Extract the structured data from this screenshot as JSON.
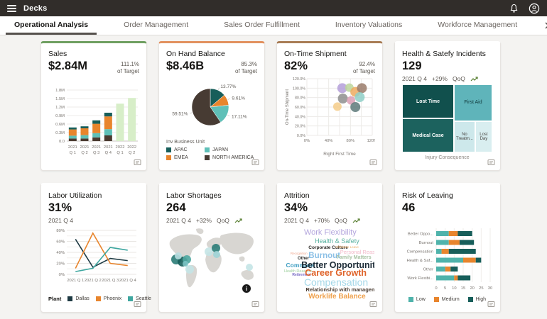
{
  "header": {
    "app_title": "Decks"
  },
  "tabs": [
    {
      "label": "Operational Analysis",
      "active": true
    },
    {
      "label": "Order Management",
      "active": false
    },
    {
      "label": "Sales Order Fulfillment",
      "active": false
    },
    {
      "label": "Inventory Valuations",
      "active": false
    },
    {
      "label": "Workforce Management",
      "active": false
    }
  ],
  "cards": [
    {
      "title": "Sales",
      "value": "$2.84M",
      "target_pct": "111.1%",
      "target_label": "of Target",
      "accent": "#6f9f61",
      "chart_data": {
        "type": "stacked_bar",
        "categories": [
          "2021 Q 1",
          "2021 Q 2",
          "2021 Q 3",
          "2021 Q 4",
          "2022 Q 1",
          "2022 Q 2"
        ],
        "ymax": 1.8,
        "ytick_step": 0.3,
        "ytick_labels": [
          "0.0",
          "0.3M",
          "0.6M",
          "0.9M",
          "1.2M",
          "1.5M",
          "1.8M"
        ],
        "stack_colors": [
          "#4a3a30",
          "#5fc0b8",
          "#e8852d",
          "#175e5a"
        ],
        "stacks": [
          [
            0.09,
            0.1,
            0.22,
            0.07
          ],
          [
            0.09,
            0.12,
            0.24,
            0.07
          ],
          [
            0.13,
            0.15,
            0.33,
            0.12
          ],
          [
            0.2,
            0.22,
            0.45,
            0.13
          ],
          null,
          null
        ],
        "forecast_values": [
          null,
          null,
          null,
          null,
          1.32,
          1.52
        ],
        "forecast_color": "#d7eec8"
      }
    },
    {
      "title": "On Hand Balance",
      "value": "$8.46B",
      "target_pct": "85.3%",
      "target_label": "of Target",
      "accent": "#e2915f",
      "chart_data": {
        "type": "pie",
        "slices": [
          {
            "label": "13.77%",
            "value": 13.77,
            "color": "#175e5a"
          },
          {
            "label": "9.61%",
            "value": 9.61,
            "color": "#e8852d"
          },
          {
            "label": "17.11%",
            "value": 17.11,
            "color": "#5fc0b8"
          },
          {
            "label": "59.51%",
            "value": 59.51,
            "color": "#473b33"
          }
        ],
        "legend_title": "Inv Business Unit",
        "legend": [
          {
            "label": "APAC",
            "color": "#175e5a"
          },
          {
            "label": "JAPAN",
            "color": "#5fc0b8"
          },
          {
            "label": "EMEA",
            "color": "#e8852d"
          },
          {
            "label": "NORTH AMERICA",
            "color": "#473b33"
          }
        ]
      }
    },
    {
      "title": "On-Time Shipment",
      "value": "82%",
      "target_pct": "92.4%",
      "target_label": "of Target",
      "accent": "#a87c55",
      "chart_data": {
        "type": "bubble",
        "xlabel": "Right First Time",
        "ylabel": "On-Time Shipment",
        "xmax": 120,
        "ymax": 120,
        "xtick_labels": [
          "0%",
          "40%",
          "80%",
          "120%"
        ],
        "ytick_labels": [
          "0.0%",
          "20.0%",
          "40.0%",
          "60.0%",
          "80.0%",
          "100.0%",
          "120.0%"
        ],
        "points": [
          {
            "x": 65,
            "y": 100,
            "r": 7,
            "color": "#b49fd9"
          },
          {
            "x": 78,
            "y": 101,
            "r": 6,
            "color": "#bcd69b"
          },
          {
            "x": 89,
            "y": 92,
            "r": 7,
            "color": "#edaa5f"
          },
          {
            "x": 101,
            "y": 100,
            "r": 7,
            "color": "#9a7b6a"
          },
          {
            "x": 66,
            "y": 78,
            "r": 7,
            "color": "#8e8e8e"
          },
          {
            "x": 81,
            "y": 74,
            "r": 6,
            "color": "#dc9fb5"
          },
          {
            "x": 97,
            "y": 81,
            "r": 7,
            "color": "#8fd0c8"
          },
          {
            "x": 56,
            "y": 61,
            "r": 6,
            "color": "#f5cd8a"
          },
          {
            "x": 89,
            "y": 60,
            "r": 7,
            "color": "#5e7a7a"
          }
        ]
      }
    },
    {
      "title": "Health & Satefy Incidents",
      "value": "129",
      "period": "2021 Q 4",
      "delta": "+29%",
      "qoq_label": "QoQ",
      "chart_data": {
        "type": "treemap",
        "caption": "Injury Consequence",
        "tiles": [
          {
            "label": "Lost Time",
            "x": 0,
            "y": 0,
            "w": 57.5,
            "h": 50,
            "color": "#11504d",
            "text": "#ffffff",
            "bold": true,
            "fs": 7
          },
          {
            "label": "First Aid",
            "x": 57.5,
            "y": 0,
            "w": 42.5,
            "h": 54,
            "color": "#5fb4ba",
            "text": "#10393b",
            "bold": false,
            "fs": 7
          },
          {
            "label": "Medical Case",
            "x": 0,
            "y": 50,
            "w": 57.5,
            "h": 50,
            "color": "#1c625e",
            "text": "#ffffff",
            "bold": true,
            "fs": 7
          },
          {
            "label": "No Treatm...",
            "x": 57.5,
            "y": 54,
            "w": 23.5,
            "h": 46,
            "color": "#cde8eb",
            "text": "#45413d",
            "bold": false,
            "fs": 6
          },
          {
            "label": "Lost Day",
            "x": 81,
            "y": 54,
            "w": 19,
            "h": 46,
            "color": "#d9eef0",
            "text": "#45413d",
            "bold": false,
            "fs": 6
          }
        ]
      }
    },
    {
      "title": "Labor Utilization",
      "value": "31%",
      "period": "2021 Q 4",
      "chart_data": {
        "type": "line",
        "categories": [
          "2021 Q 1",
          "2021 Q 2",
          "2021 Q 3",
          "2021 Q 4"
        ],
        "ymax": 80,
        "ytick_step": 20,
        "ytick_labels": [
          "0%",
          "20%",
          "40%",
          "60%",
          "80%"
        ],
        "legend_title": "Plant",
        "series": [
          {
            "name": "Dallas",
            "color": "#1e3a43",
            "values": [
              64,
              13,
              29,
              25
            ]
          },
          {
            "name": "Phoenix",
            "color": "#e8852d",
            "values": [
              11,
              75,
              20,
              16
            ]
          },
          {
            "name": "Seattle",
            "color": "#3fa7a0",
            "values": [
              5,
              11,
              49,
              44
            ]
          }
        ]
      }
    },
    {
      "title": "Labor Shortages",
      "value": "264",
      "period": "2021 Q 4",
      "delta": "+32%",
      "qoq_label": "QoQ",
      "chart_data": {
        "type": "map",
        "points": [
          {
            "x": 14,
            "y": 47,
            "r": 7,
            "color": "#2b7c77"
          },
          {
            "x": 23,
            "y": 50,
            "r": 7,
            "color": "#175f5b"
          },
          {
            "x": 29,
            "y": 47,
            "r": 6,
            "color": "#4fa8a1"
          },
          {
            "x": 17,
            "y": 42,
            "r": 5,
            "color": "#b8dee0"
          },
          {
            "x": 27,
            "y": 53,
            "r": 4,
            "color": "#7cc3c4"
          },
          {
            "x": 33,
            "y": 61,
            "r": 6,
            "color": "#c4e4e6"
          },
          {
            "x": 60,
            "y": 36,
            "r": 6,
            "color": "#c4e4e6"
          },
          {
            "x": 70,
            "y": 31,
            "r": 6,
            "color": "#2b7c77"
          },
          {
            "x": 71,
            "y": 40,
            "r": 5,
            "color": "#9fd4d6"
          },
          {
            "x": 117,
            "y": 58,
            "r": 5,
            "color": "#c4e4e6"
          }
        ]
      }
    },
    {
      "title": "Attrition",
      "value": "34%",
      "period": "2021 Q 4",
      "delta": "+70%",
      "qoq_label": "QoQ",
      "chart_data": {
        "type": "wordcloud",
        "words": [
          {
            "text": "Work Flexibility",
            "size": 11,
            "color": "#b3a5dd",
            "x": 22,
            "y": 1,
            "bold": false
          },
          {
            "text": "Health & Safety",
            "size": 9,
            "color": "#57b09e",
            "x": 34,
            "y": 13,
            "bold": false
          },
          {
            "text": "Corporate Culture",
            "size": 6.5,
            "color": "#2b2926",
            "x": 27,
            "y": 24,
            "bold": true
          },
          {
            "text": "Childcare Leave",
            "size": 4.5,
            "color": "#eeb06a",
            "x": 57,
            "y": 24,
            "bold": false
          },
          {
            "text": "Personal Reasons",
            "size": 7.5,
            "color": "#f2b9c8",
            "x": 62,
            "y": 29,
            "bold": false
          },
          {
            "text": "Recognition",
            "size": 4.5,
            "color": "#f0a58c",
            "x": 7,
            "y": 33,
            "bold": false
          },
          {
            "text": "Other",
            "size": 6,
            "color": "#2b2926",
            "x": 15,
            "y": 38,
            "bold": true
          },
          {
            "text": "Burnout",
            "size": 11.5,
            "color": "#8cc0e6",
            "x": 27,
            "y": 33,
            "bold": true
          },
          {
            "text": "Family Matters",
            "size": 7,
            "color": "#a9c3a4",
            "x": 58,
            "y": 37,
            "bold": true
          },
          {
            "text": "Commute",
            "size": 8.5,
            "color": "#3e9ec2",
            "x": 2,
            "y": 46,
            "bold": true
          },
          {
            "text": "Better Opportunity",
            "size": 12.5,
            "color": "#1c2b36",
            "x": 19,
            "y": 44,
            "bold": true
          },
          {
            "text": "Health Reasons",
            "size": 5.5,
            "color": "#9ccf9c",
            "x": 0,
            "y": 57,
            "bold": false
          },
          {
            "text": "Retirement",
            "size": 5,
            "color": "#7668c4",
            "x": 9,
            "y": 62,
            "bold": true
          },
          {
            "text": "Career Growth",
            "size": 12.5,
            "color": "#df6228",
            "x": 23,
            "y": 55,
            "bold": true
          },
          {
            "text": "Compensation",
            "size": 14,
            "color": "#a5d8e8",
            "x": 22,
            "y": 66,
            "bold": false
          },
          {
            "text": "Relationship with management",
            "size": 7.5,
            "color": "#4c3f35",
            "x": 24,
            "y": 80,
            "bold": true
          },
          {
            "text": "Worklife Balance",
            "size": 10,
            "color": "#efa04b",
            "x": 27,
            "y": 88,
            "bold": true
          }
        ]
      }
    },
    {
      "title": "Risk of Leaving",
      "value": "46",
      "chart_data": {
        "type": "hbar_stacked",
        "categories": [
          "Better Oppo...",
          "Burnout",
          "Compensation",
          "Health & Saf...",
          "Other",
          "Work Flexibi..."
        ],
        "xticks": [
          0,
          5,
          10,
          15,
          20,
          25,
          30
        ],
        "series": [
          {
            "name": "Low",
            "color": "#4fb3ab",
            "values": [
              7,
              7,
              3,
              15,
              5,
              10
            ]
          },
          {
            "name": "Medium",
            "color": "#e8852d",
            "values": [
              5,
              6,
              4,
              7,
              3,
              2
            ]
          },
          {
            "name": "High",
            "color": "#175e5a",
            "values": [
              8,
              8,
              15,
              3,
              4,
              7
            ]
          }
        ]
      }
    }
  ]
}
